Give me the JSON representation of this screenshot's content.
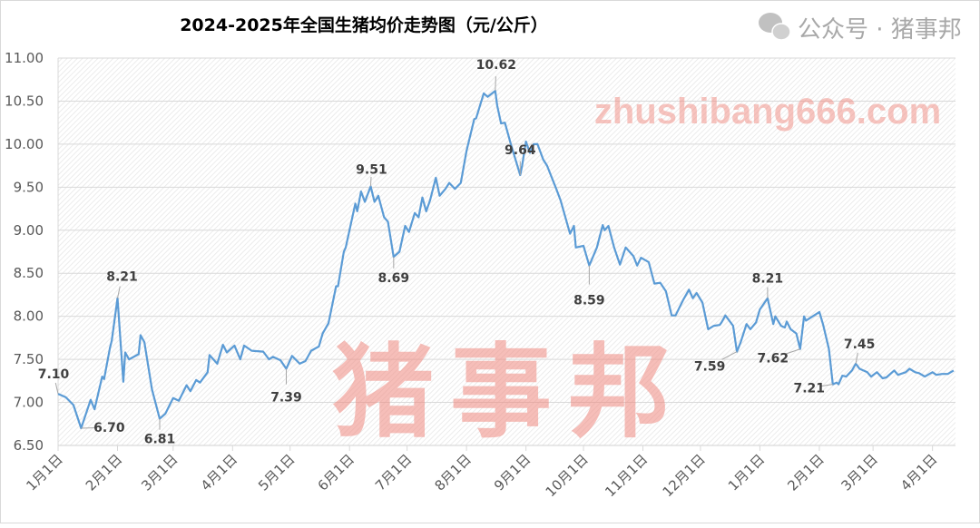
{
  "chart_data": {
    "type": "line",
    "title": "2024-2025年全国生猪均价走势图（元/公斤）",
    "xlabel": "",
    "ylabel": "",
    "xlim": [
      "2024-01-01",
      "2025-04-13"
    ],
    "ylim": [
      6.5,
      11.0
    ],
    "yticks": [
      "6.50",
      "7.00",
      "7.50",
      "8.00",
      "8.50",
      "9.00",
      "9.50",
      "10.00",
      "10.50",
      "11.00"
    ],
    "xticks": [
      {
        "date": "2024-01-01",
        "label": "1月1日"
      },
      {
        "date": "2024-02-01",
        "label": "2月1日"
      },
      {
        "date": "2024-03-01",
        "label": "3月1日"
      },
      {
        "date": "2024-04-01",
        "label": "4月1日"
      },
      {
        "date": "2024-05-01",
        "label": "5月1日"
      },
      {
        "date": "2024-06-01",
        "label": "6月1日"
      },
      {
        "date": "2024-07-01",
        "label": "7月1日"
      },
      {
        "date": "2024-08-01",
        "label": "8月1日"
      },
      {
        "date": "2024-09-01",
        "label": "9月1日"
      },
      {
        "date": "2024-10-01",
        "label": "10月1日"
      },
      {
        "date": "2024-11-01",
        "label": "11月1日"
      },
      {
        "date": "2024-12-01",
        "label": "12月1日"
      },
      {
        "date": "2025-01-01",
        "label": "1月1日"
      },
      {
        "date": "2025-02-01",
        "label": "2月1日"
      },
      {
        "date": "2025-03-01",
        "label": "3月1日"
      },
      {
        "date": "2025-04-01",
        "label": "4月1日"
      }
    ],
    "grid": true,
    "line_color": "#5b9bd5",
    "series": [
      {
        "points": [
          [
            "2024-01-01",
            7.1
          ],
          [
            "2024-01-05",
            7.06
          ],
          [
            "2024-01-09",
            6.97
          ],
          [
            "2024-01-13",
            6.7
          ],
          [
            "2024-01-18",
            7.03
          ],
          [
            "2024-01-20",
            6.92
          ],
          [
            "2024-01-24",
            7.3
          ],
          [
            "2024-01-25",
            7.27
          ],
          [
            "2024-01-28",
            7.63
          ],
          [
            "2024-01-29",
            7.72
          ],
          [
            "2024-02-01",
            8.21
          ],
          [
            "2024-02-04",
            7.24
          ],
          [
            "2024-02-05",
            7.58
          ],
          [
            "2024-02-07",
            7.5
          ],
          [
            "2024-02-12",
            7.56
          ],
          [
            "2024-02-13",
            7.78
          ],
          [
            "2024-02-15",
            7.7
          ],
          [
            "2024-02-19",
            7.15
          ],
          [
            "2024-02-23",
            6.81
          ],
          [
            "2024-02-26",
            6.87
          ],
          [
            "2024-03-01",
            7.05
          ],
          [
            "2024-03-04",
            7.02
          ],
          [
            "2024-03-08",
            7.2
          ],
          [
            "2024-03-10",
            7.13
          ],
          [
            "2024-03-13",
            7.26
          ],
          [
            "2024-03-15",
            7.23
          ],
          [
            "2024-03-19",
            7.35
          ],
          [
            "2024-03-20",
            7.55
          ],
          [
            "2024-03-24",
            7.45
          ],
          [
            "2024-03-27",
            7.67
          ],
          [
            "2024-03-29",
            7.58
          ],
          [
            "2024-04-02",
            7.66
          ],
          [
            "2024-04-05",
            7.5
          ],
          [
            "2024-04-07",
            7.66
          ],
          [
            "2024-04-11",
            7.6
          ],
          [
            "2024-04-17",
            7.59
          ],
          [
            "2024-04-20",
            7.5
          ],
          [
            "2024-04-22",
            7.53
          ],
          [
            "2024-04-26",
            7.49
          ],
          [
            "2024-04-29",
            7.39
          ],
          [
            "2024-05-02",
            7.54
          ],
          [
            "2024-05-06",
            7.45
          ],
          [
            "2024-05-09",
            7.48
          ],
          [
            "2024-05-12",
            7.6
          ],
          [
            "2024-05-16",
            7.65
          ],
          [
            "2024-05-18",
            7.8
          ],
          [
            "2024-05-21",
            7.92
          ],
          [
            "2024-05-25",
            8.35
          ],
          [
            "2024-05-26",
            8.35
          ],
          [
            "2024-05-29",
            8.75
          ],
          [
            "2024-05-30",
            8.8
          ],
          [
            "2024-06-04",
            9.31
          ],
          [
            "2024-06-05",
            9.22
          ],
          [
            "2024-06-07",
            9.45
          ],
          [
            "2024-06-09",
            9.33
          ],
          [
            "2024-06-12",
            9.51
          ],
          [
            "2024-06-14",
            9.33
          ],
          [
            "2024-06-16",
            9.4
          ],
          [
            "2024-06-19",
            9.15
          ],
          [
            "2024-06-21",
            9.1
          ],
          [
            "2024-06-24",
            8.69
          ],
          [
            "2024-06-27",
            8.75
          ],
          [
            "2024-06-30",
            9.05
          ],
          [
            "2024-07-02",
            8.98
          ],
          [
            "2024-07-05",
            9.2
          ],
          [
            "2024-07-07",
            9.15
          ],
          [
            "2024-07-09",
            9.38
          ],
          [
            "2024-07-11",
            9.22
          ],
          [
            "2024-07-13",
            9.35
          ],
          [
            "2024-07-16",
            9.61
          ],
          [
            "2024-07-18",
            9.4
          ],
          [
            "2024-07-21",
            9.48
          ],
          [
            "2024-07-23",
            9.55
          ],
          [
            "2024-07-26",
            9.48
          ],
          [
            "2024-07-29",
            9.55
          ],
          [
            "2024-08-01",
            9.92
          ],
          [
            "2024-08-05",
            10.29
          ],
          [
            "2024-08-06",
            10.3
          ],
          [
            "2024-08-10",
            10.59
          ],
          [
            "2024-08-12",
            10.55
          ],
          [
            "2024-08-16",
            10.62
          ],
          [
            "2024-08-17",
            10.45
          ],
          [
            "2024-08-19",
            10.24
          ],
          [
            "2024-08-21",
            10.25
          ],
          [
            "2024-08-24",
            10.01
          ],
          [
            "2024-08-29",
            9.64
          ],
          [
            "2024-08-30",
            9.75
          ],
          [
            "2024-09-01",
            10.03
          ],
          [
            "2024-09-03",
            9.9
          ],
          [
            "2024-09-05",
            10.0
          ],
          [
            "2024-09-07",
            10.0
          ],
          [
            "2024-09-10",
            9.82
          ],
          [
            "2024-09-12",
            9.75
          ],
          [
            "2024-09-17",
            9.47
          ],
          [
            "2024-09-19",
            9.35
          ],
          [
            "2024-09-24",
            8.96
          ],
          [
            "2024-09-26",
            9.05
          ],
          [
            "2024-09-27",
            8.8
          ],
          [
            "2024-10-01",
            8.82
          ],
          [
            "2024-10-04",
            8.59
          ],
          [
            "2024-10-08",
            8.8
          ],
          [
            "2024-10-11",
            9.06
          ],
          [
            "2024-10-12",
            9.0
          ],
          [
            "2024-10-14",
            9.05
          ],
          [
            "2024-10-17",
            8.8
          ],
          [
            "2024-10-20",
            8.6
          ],
          [
            "2024-10-23",
            8.8
          ],
          [
            "2024-10-27",
            8.7
          ],
          [
            "2024-10-29",
            8.59
          ],
          [
            "2024-10-31",
            8.68
          ],
          [
            "2024-11-04",
            8.63
          ],
          [
            "2024-11-07",
            8.38
          ],
          [
            "2024-11-10",
            8.39
          ],
          [
            "2024-11-13",
            8.29
          ],
          [
            "2024-11-16",
            8.01
          ],
          [
            "2024-11-18",
            8.01
          ],
          [
            "2024-11-22",
            8.19
          ],
          [
            "2024-11-25",
            8.31
          ],
          [
            "2024-11-27",
            8.21
          ],
          [
            "2024-11-29",
            8.27
          ],
          [
            "2024-12-02",
            8.16
          ],
          [
            "2024-12-05",
            7.85
          ],
          [
            "2024-12-08",
            7.89
          ],
          [
            "2024-12-11",
            7.9
          ],
          [
            "2024-12-12",
            7.93
          ],
          [
            "2024-12-14",
            8.01
          ],
          [
            "2024-12-18",
            7.89
          ],
          [
            "2024-12-20",
            7.59
          ],
          [
            "2024-12-22",
            7.7
          ],
          [
            "2024-12-25",
            7.91
          ],
          [
            "2024-12-27",
            7.85
          ],
          [
            "2024-12-30",
            7.93
          ],
          [
            "2025-01-01",
            8.08
          ],
          [
            "2025-01-05",
            8.21
          ],
          [
            "2025-01-08",
            7.91
          ],
          [
            "2025-01-09",
            8.0
          ],
          [
            "2025-01-12",
            7.89
          ],
          [
            "2025-01-14",
            7.87
          ],
          [
            "2025-01-15",
            7.94
          ],
          [
            "2025-01-17",
            7.85
          ],
          [
            "2025-01-20",
            7.8
          ],
          [
            "2025-01-22",
            7.62
          ],
          [
            "2025-01-24",
            8.0
          ],
          [
            "2025-01-25",
            7.95
          ],
          [
            "2025-02-01",
            8.05
          ],
          [
            "2025-02-03",
            7.9
          ],
          [
            "2025-02-06",
            7.62
          ],
          [
            "2025-02-08",
            7.21
          ],
          [
            "2025-02-10",
            7.23
          ],
          [
            "2025-02-11",
            7.21
          ],
          [
            "2025-02-13",
            7.31
          ],
          [
            "2025-02-15",
            7.3
          ],
          [
            "2025-02-18",
            7.37
          ],
          [
            "2025-02-20",
            7.45
          ],
          [
            "2025-02-22",
            7.39
          ],
          [
            "2025-02-26",
            7.35
          ],
          [
            "2025-02-28",
            7.3
          ],
          [
            "2025-03-03",
            7.35
          ],
          [
            "2025-03-06",
            7.28
          ],
          [
            "2025-03-08",
            7.29
          ],
          [
            "2025-03-12",
            7.37
          ],
          [
            "2025-03-14",
            7.32
          ],
          [
            "2025-03-18",
            7.35
          ],
          [
            "2025-03-20",
            7.39
          ],
          [
            "2025-03-23",
            7.35
          ],
          [
            "2025-03-25",
            7.34
          ],
          [
            "2025-03-28",
            7.3
          ],
          [
            "2025-04-01",
            7.35
          ],
          [
            "2025-04-03",
            7.32
          ],
          [
            "2025-04-06",
            7.33
          ],
          [
            "2025-04-09",
            7.33
          ],
          [
            "2025-04-12",
            7.37
          ]
        ]
      }
    ],
    "annotations": [
      {
        "date": "2024-01-01",
        "value": 7.1,
        "label": "7.10"
      },
      {
        "date": "2024-01-13",
        "value": 6.7,
        "label": "6.70"
      },
      {
        "date": "2024-02-01",
        "value": 8.21,
        "label": "8.21"
      },
      {
        "date": "2024-02-23",
        "value": 6.81,
        "label": "6.81"
      },
      {
        "date": "2024-04-29",
        "value": 7.39,
        "label": "7.39"
      },
      {
        "date": "2024-06-12",
        "value": 9.51,
        "label": "9.51"
      },
      {
        "date": "2024-06-24",
        "value": 8.69,
        "label": "8.69"
      },
      {
        "date": "2024-08-16",
        "value": 10.62,
        "label": "10.62"
      },
      {
        "date": "2024-08-29",
        "value": 9.64,
        "label": "9.64"
      },
      {
        "date": "2024-10-04",
        "value": 8.59,
        "label": "8.59"
      },
      {
        "date": "2024-12-20",
        "value": 7.59,
        "label": "7.59"
      },
      {
        "date": "2025-01-05",
        "value": 8.21,
        "label": "8.21"
      },
      {
        "date": "2025-01-22",
        "value": 7.62,
        "label": "7.62"
      },
      {
        "date": "2025-02-08",
        "value": 7.21,
        "label": "7.21"
      },
      {
        "date": "2025-02-20",
        "value": 7.45,
        "label": "7.45"
      }
    ]
  },
  "watermark": {
    "brand": "猪事邦",
    "site": "zhushibang666.com",
    "wechat": "公众号 · 猪事邦"
  }
}
